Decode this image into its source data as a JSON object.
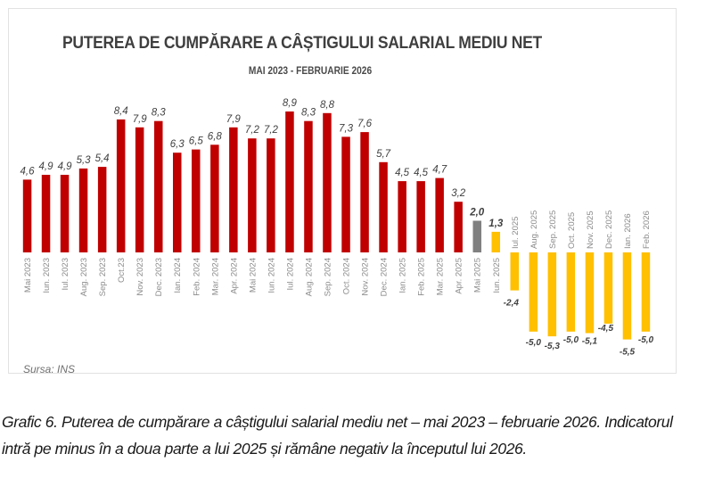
{
  "chart_data": {
    "type": "bar",
    "title": "PUTEREA DE CUMPĂRARE A CÂȘTIGULUI SALARIAL MEDIU NET",
    "subtitle": "MAI 2023 - FEBRUARIE 2026",
    "xlabel": "",
    "ylabel": "",
    "ylim": [
      -5.5,
      8.9
    ],
    "grid": false,
    "legend": "none",
    "source": "Sursa: INS",
    "categories": [
      "Mai 2023",
      "Iun. 2023",
      "Iul. 2023",
      "Aug. 2023",
      "Sep. 2023",
      "Oct.23",
      "Nov. 2023",
      "Dec. 2023",
      "Ian. 2024",
      "Feb. 2024",
      "Mar. 2024",
      "Apr. 2024",
      "Mai 2024",
      "Iun. 2024",
      "Iul. 2024",
      "Aug. 2024",
      "Sep. 2024",
      "Oct. 2024",
      "Nov. 2024",
      "Dec. 2024",
      "Ian. 2025",
      "Feb. 2025",
      "Mar. 2025",
      "Apr. 2025",
      "Mai 2025",
      "Iun. 2025",
      "Iul. 2025",
      "Aug. 2025",
      "Sep. 2025",
      "Oct. 2025",
      "Nov. 2025",
      "Dec. 2025",
      "Ian. 2026",
      "Feb. 2026"
    ],
    "values": [
      4.6,
      4.9,
      4.9,
      5.3,
      5.4,
      8.4,
      7.9,
      8.3,
      6.3,
      6.5,
      6.8,
      7.9,
      7.2,
      7.2,
      8.9,
      8.3,
      8.8,
      7.3,
      7.6,
      5.7,
      4.5,
      4.5,
      4.7,
      3.2,
      2.0,
      1.3,
      -2.4,
      -5.0,
      -5.3,
      -5.0,
      -5.1,
      -4.5,
      -5.5,
      -5.0
    ],
    "value_labels": [
      "4,6",
      "4,9",
      "4,9",
      "5,3",
      "5,4",
      "8,4",
      "7,9",
      "8,3",
      "6,3",
      "6,5",
      "6,8",
      "7,9",
      "7,2",
      "7,2",
      "8,9",
      "8,3",
      "8,8",
      "7,3",
      "7,6",
      "5,7",
      "4,5",
      "4,5",
      "4,7",
      "3,2",
      "2,0",
      "1,3",
      "-2,4",
      "-5,0",
      "-5,3",
      "-5,0",
      "-5,1",
      "-4,5",
      "-5,5",
      "-5,0"
    ],
    "bar_groups": [
      "red",
      "red",
      "red",
      "red",
      "red",
      "red",
      "red",
      "red",
      "red",
      "red",
      "red",
      "red",
      "red",
      "red",
      "red",
      "red",
      "red",
      "red",
      "red",
      "red",
      "red",
      "red",
      "red",
      "red",
      "gray",
      "yellow",
      "yellow",
      "yellow",
      "yellow",
      "yellow",
      "yellow",
      "yellow",
      "yellow",
      "yellow"
    ],
    "colors": {
      "red": "#c00000",
      "gray": "#808080",
      "yellow": "#ffc000",
      "label": "#404040",
      "tick": "#8c8c8c"
    }
  },
  "caption": "Grafic 6. Puterea de cumpărare a câștigului salarial mediu net – mai 2023 – februarie 2026. Indicatorul intră pe minus în a doua parte a lui 2025 și rămâne negativ la începutul lui 2026."
}
